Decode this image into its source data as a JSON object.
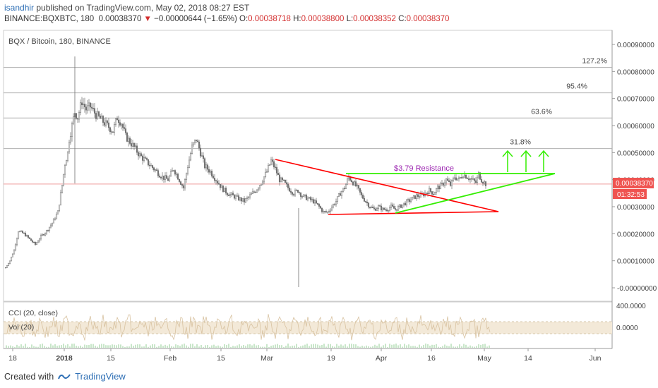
{
  "header": {
    "username": "isandhir",
    "published_text": "published on TradingView.com, May 02, 2018 08:27 EST",
    "symbol": "BINANCE:BQXBTC, 180",
    "last_price": "0.00038370",
    "change_arrow": "▼",
    "change": "−0.00000644 (−1.65%)",
    "open_label": "O:",
    "open": "0.00038718",
    "high_label": "H:",
    "high": "0.00038800",
    "low_label": "L:",
    "low": "0.00038352",
    "close_label": "C:",
    "close": "0.00038370"
  },
  "chart": {
    "legend": "BQX / Bitcoin, 180, BINANCE",
    "price_badge": "0.00038370",
    "countdown_badge": "01:32:53",
    "resistance_label": "$3.79 Resistance",
    "fib_labels": [
      "127.2%",
      "95.4%",
      "63.6%",
      "31.8%"
    ],
    "indicator_cci": "CCI (20, close)",
    "indicator_vol": "Vol (20)",
    "cci_ticks": [
      "400.0000",
      "0.0000"
    ],
    "colors": {
      "up": "#26a69a",
      "down": "#ef5350",
      "candle": "#6f6f6f",
      "red_line": "#ff0000",
      "green_line": "#33ee00",
      "resistance_text": "#9c27b0",
      "price_badge_bg": "#ef5350"
    }
  },
  "chart_data": {
    "type": "candlestick",
    "title": "BQX / Bitcoin, 180, BINANCE",
    "y_ticks": [
      "0.00090000",
      "0.00080000",
      "0.00070000",
      "0.00060000",
      "0.00050000",
      "0.00040000",
      "0.00030000",
      "0.00020000",
      "0.00010000",
      "-0.00000000"
    ],
    "x_ticks": [
      "18",
      "2018",
      "15",
      "Feb",
      "15",
      "Mar",
      "19",
      "Apr",
      "16",
      "May",
      "14",
      "Jun"
    ],
    "ylim": [
      -1e-05,
      0.00095
    ],
    "fib_levels": [
      {
        "label": "127.2%",
        "value": 0.000815
      },
      {
        "label": "95.4%",
        "value": 0.000721
      },
      {
        "label": "63.6%",
        "value": 0.000628
      },
      {
        "label": "31.8%",
        "value": 0.000515
      }
    ],
    "resistance": 0.000422,
    "last_price": 0.0003837,
    "approx_path": [
      [
        0,
        7.5e-05
      ],
      [
        6,
        0.0001
      ],
      [
        12,
        0.00014
      ],
      [
        18,
        0.00021
      ],
      [
        26,
        0.0002
      ],
      [
        34,
        0.00018
      ],
      [
        42,
        0.00016
      ],
      [
        50,
        0.00019
      ],
      [
        58,
        0.00021
      ],
      [
        66,
        0.00024
      ],
      [
        74,
        0.00028
      ],
      [
        80,
        0.00038
      ],
      [
        84,
        0.00046
      ],
      [
        88,
        0.0005
      ],
      [
        90,
        0.00055
      ],
      [
        94,
        0.0006
      ],
      [
        98,
        0.00065
      ],
      [
        102,
        0.00063
      ],
      [
        108,
        0.00069
      ],
      [
        114,
        0.00066
      ],
      [
        120,
        0.00067
      ],
      [
        128,
        0.00064
      ],
      [
        136,
        0.00062
      ],
      [
        144,
        0.0006
      ],
      [
        152,
        0.00058
      ],
      [
        158,
        0.00063
      ],
      [
        164,
        0.00061
      ],
      [
        170,
        0.00056
      ],
      [
        176,
        0.00054
      ],
      [
        182,
        0.00052
      ],
      [
        190,
        0.00049
      ],
      [
        198,
        0.00047
      ],
      [
        206,
        0.00045
      ],
      [
        214,
        0.00043
      ],
      [
        222,
        0.00041
      ],
      [
        230,
        0.0004
      ],
      [
        238,
        0.00044
      ],
      [
        246,
        0.0004
      ],
      [
        252,
        0.00037
      ],
      [
        258,
        0.00045
      ],
      [
        264,
        0.00052
      ],
      [
        270,
        0.00055
      ],
      [
        276,
        0.0005
      ],
      [
        282,
        0.00045
      ],
      [
        290,
        0.00043
      ],
      [
        298,
        0.0004
      ],
      [
        306,
        0.00037
      ],
      [
        314,
        0.00035
      ],
      [
        322,
        0.00034
      ],
      [
        330,
        0.00033
      ],
      [
        338,
        0.00032
      ],
      [
        346,
        0.00034
      ],
      [
        354,
        0.00036
      ],
      [
        362,
        0.00039
      ],
      [
        370,
        0.00043
      ],
      [
        376,
        0.00047
      ],
      [
        382,
        0.00044
      ],
      [
        388,
        0.0004
      ],
      [
        394,
        0.00039
      ],
      [
        400,
        0.00037
      ],
      [
        408,
        0.00035
      ],
      [
        414,
        0.00036
      ],
      [
        420,
        0.00034
      ],
      [
        428,
        0.00033
      ],
      [
        436,
        0.00032
      ],
      [
        444,
        0.0003
      ],
      [
        450,
        0.00028
      ],
      [
        456,
        0.00028
      ],
      [
        462,
        0.0003
      ],
      [
        468,
        0.00032
      ],
      [
        474,
        0.00035
      ],
      [
        480,
        0.00037
      ],
      [
        486,
        0.00041
      ],
      [
        492,
        0.00039
      ],
      [
        498,
        0.00037
      ],
      [
        504,
        0.00034
      ],
      [
        510,
        0.00032
      ],
      [
        516,
        0.0003
      ],
      [
        522,
        0.00029
      ],
      [
        528,
        0.0003
      ],
      [
        534,
        0.00029
      ],
      [
        540,
        0.00029
      ],
      [
        546,
        0.0003
      ],
      [
        552,
        0.00029
      ],
      [
        558,
        0.0003
      ],
      [
        564,
        0.00031
      ],
      [
        570,
        0.00032
      ],
      [
        576,
        0.00033
      ],
      [
        582,
        0.00034
      ],
      [
        588,
        0.00034
      ],
      [
        594,
        0.00035
      ],
      [
        600,
        0.00036
      ],
      [
        606,
        0.00035
      ],
      [
        612,
        0.00037
      ],
      [
        618,
        0.00038
      ],
      [
        624,
        0.0004
      ],
      [
        630,
        0.00038
      ],
      [
        636,
        0.00041
      ],
      [
        642,
        0.0004
      ],
      [
        648,
        0.00042
      ],
      [
        654,
        0.00041
      ],
      [
        660,
        0.0004
      ],
      [
        666,
        0.00039
      ],
      [
        670,
        0.00042
      ],
      [
        674,
        0.0004
      ],
      [
        680,
        0.000384
      ]
    ]
  },
  "footer": {
    "created_with": "Created with",
    "brand": "TradingView"
  }
}
